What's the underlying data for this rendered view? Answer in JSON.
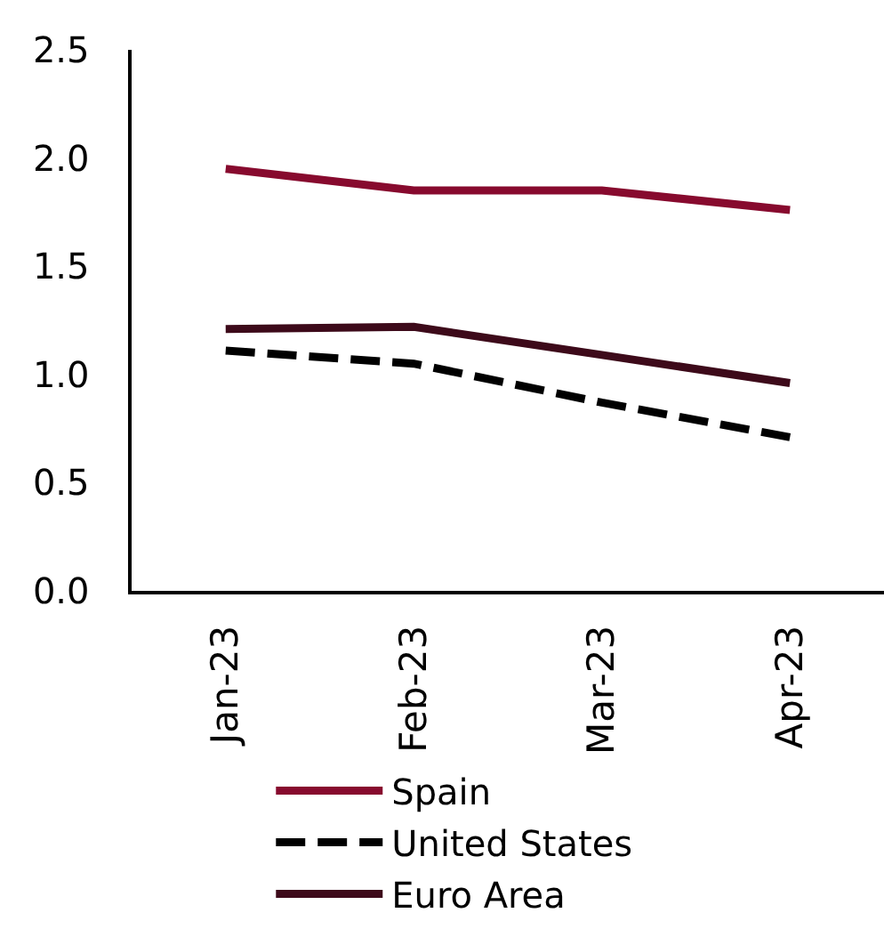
{
  "chart_data": {
    "type": "line",
    "categories": [
      "Jan-23",
      "Feb-23",
      "Mar-23",
      "Apr-23"
    ],
    "series": [
      {
        "name": "Spain",
        "color": "#870a2e",
        "values": [
          1.95,
          1.85,
          1.85,
          1.76
        ]
      },
      {
        "name": "United States",
        "color": "#000000",
        "line_style": "dashed",
        "values": [
          1.11,
          1.05,
          0.87,
          0.71
        ]
      },
      {
        "name": "Euro Area",
        "color": "#3d0a1a",
        "values": [
          1.21,
          1.22,
          1.09,
          0.96
        ]
      }
    ],
    "ylim": [
      0,
      2.5
    ],
    "yticks": [
      {
        "value": 0,
        "label": "0.0"
      },
      0.5,
      {
        "value": 1,
        "label": "1.0"
      },
      1.5,
      {
        "value": 2,
        "label": "2.0"
      },
      2.5
    ],
    "grid": false,
    "legend": "bottom",
    "marker": "none",
    "line_style": "solid"
  }
}
